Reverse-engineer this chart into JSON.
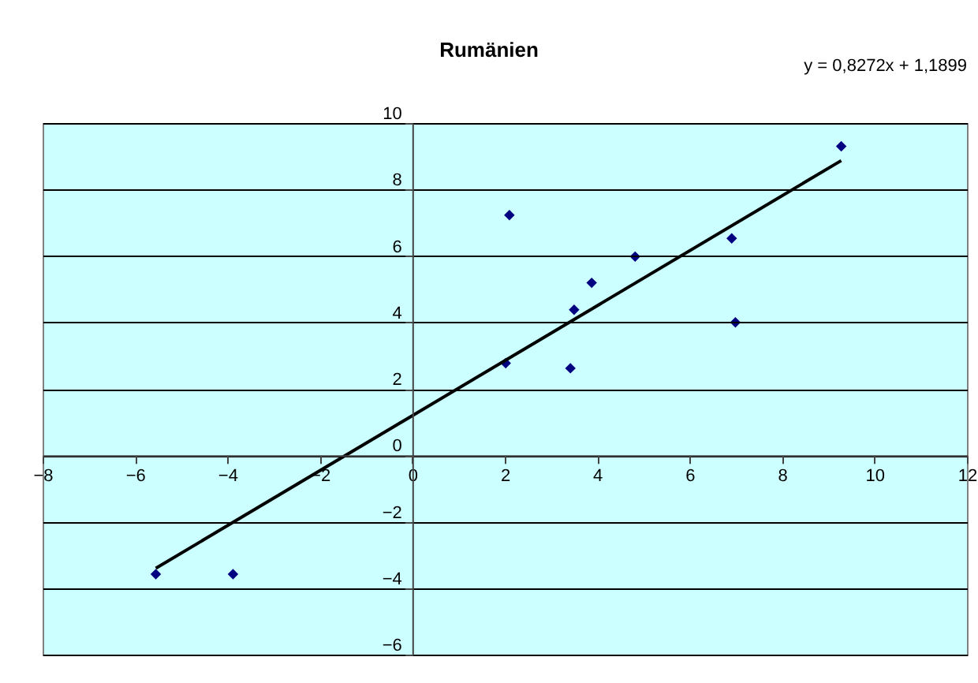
{
  "chart_data": {
    "type": "scatter",
    "title": "Rumänien",
    "annotations": [
      "y = 0,8272x + 1,1899"
    ],
    "xlim": [
      -8,
      12
    ],
    "xticks": [
      -8,
      -6,
      -4,
      -2,
      0,
      2,
      4,
      6,
      8,
      10,
      12
    ],
    "ylim": [
      -6,
      10
    ],
    "yticks": [
      -6,
      -4,
      -2,
      0,
      2,
      4,
      6,
      8,
      10
    ],
    "grid": "y",
    "marker": "diamond",
    "series": [
      {
        "color": "#000080",
        "x": [
          2.1,
          9.28,
          6.91,
          6.99,
          4.82,
          3.88,
          3.5,
          2.02,
          3.42,
          -5.55,
          -3.88
        ],
        "values": [
          7.23,
          9.3,
          6.53,
          4.0,
          5.98,
          5.19,
          4.38,
          2.77,
          2.62,
          -3.58,
          -3.58
        ]
      },
      {
        "type": "line",
        "color": "#000000",
        "line_style": "solid",
        "marker": "none",
        "x": [
          -5.55,
          9.28
        ],
        "values": [
          -3.4,
          8.87
        ]
      }
    ]
  }
}
